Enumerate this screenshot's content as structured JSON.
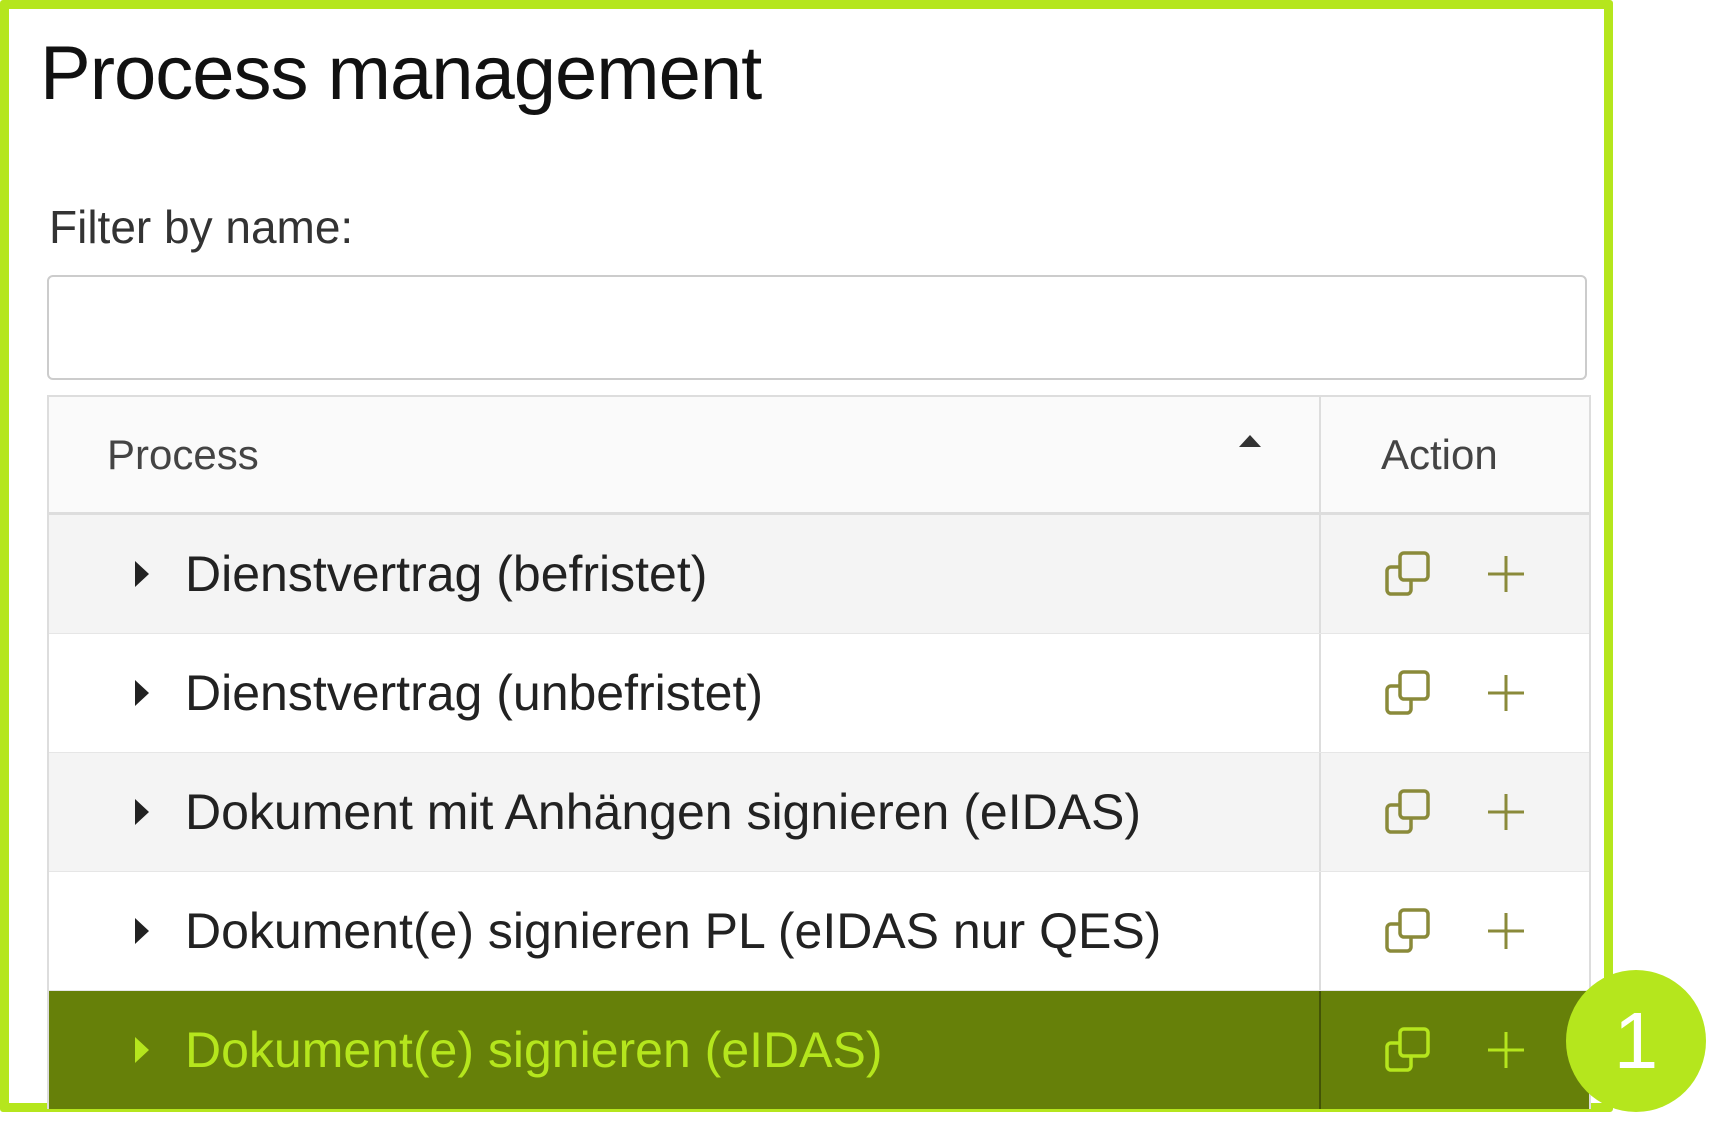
{
  "page": {
    "title": "Process management"
  },
  "filter": {
    "label": "Filter by name:",
    "value": "",
    "placeholder": ""
  },
  "table": {
    "columns": {
      "process": "Process",
      "action": "Action"
    },
    "sort": {
      "column": "Process",
      "direction": "ascending"
    },
    "rows": [
      {
        "name": "Dienstvertrag (befristet)",
        "selected": false
      },
      {
        "name": "Dienstvertrag (unbefristet)",
        "selected": false
      },
      {
        "name": "Dokument mit Anhängen signieren (eIDAS)",
        "selected": false
      },
      {
        "name": "Dokument(e) signieren PL (eIDAS nur QES)",
        "selected": false
      },
      {
        "name": "Dokument(e) signieren (eIDAS)",
        "selected": true
      }
    ],
    "action_icons": [
      "copy-icon",
      "plus-icon"
    ]
  },
  "annotation": {
    "badge": "1"
  },
  "colors": {
    "highlight_frame": "#b5e61d",
    "selected_row": "#668009",
    "selected_text": "#b5e61d",
    "icon": "#7a7a30"
  }
}
